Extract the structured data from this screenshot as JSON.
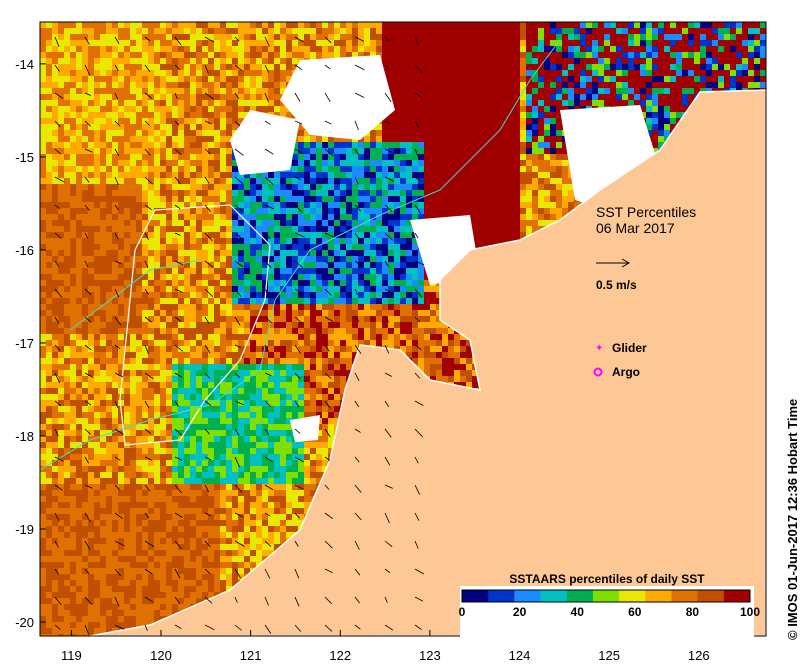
{
  "map": {
    "title": "SST Percentiles",
    "date": "06 Mar 2017",
    "vector_scale_label": "0.5 m/s",
    "legend": {
      "glider_label": "Glider",
      "argo_label": "Argo",
      "glider_color": "#ff00ff",
      "argo_color": "#ff00ff"
    },
    "credit": "© IMOS 01-Jun-2017 12:36 Hobart Time",
    "land_color": "#fdc896",
    "x_ticks": [
      "119",
      "120",
      "121",
      "122",
      "123",
      "124",
      "125",
      "126"
    ],
    "y_ticks": [
      "-14",
      "-15",
      "-16",
      "-17",
      "-18",
      "-19",
      "-20"
    ],
    "lon_range": [
      118.65,
      126.75
    ],
    "lat_range": [
      -20.15,
      -13.55
    ]
  },
  "colorbar": {
    "title": "SSTAARS percentiles of daily SST",
    "tick_labels": [
      "0",
      "20",
      "40",
      "60",
      "80",
      "100"
    ],
    "colors": [
      "#000080",
      "#0033cc",
      "#1a8cff",
      "#00c0c0",
      "#00b050",
      "#7fe000",
      "#e8e800",
      "#ffaa00",
      "#e07000",
      "#c05000",
      "#a00000"
    ]
  }
}
